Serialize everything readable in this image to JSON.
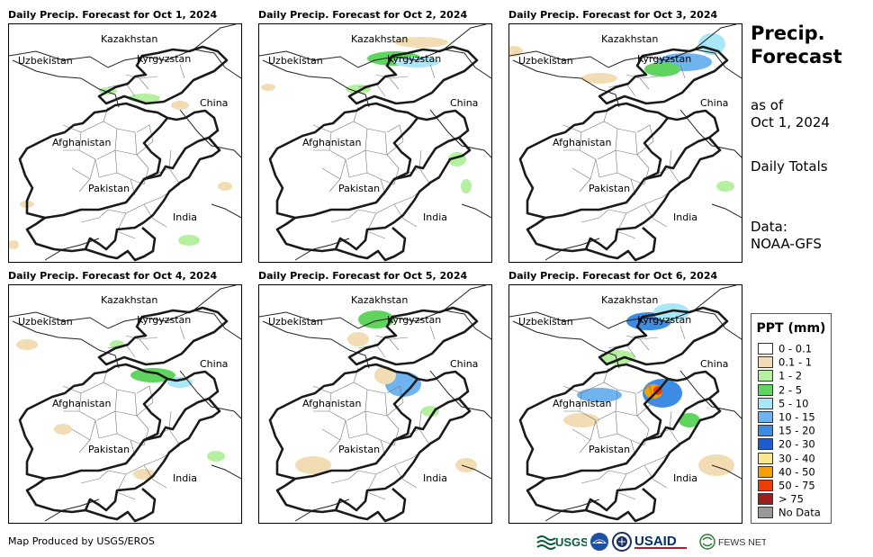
{
  "panels": [
    {
      "title": "Daily Precip. Forecast for Oct 1, 2024"
    },
    {
      "title": "Daily Precip. Forecast for Oct 2, 2024"
    },
    {
      "title": "Daily Precip. Forecast for Oct 3, 2024"
    },
    {
      "title": "Daily Precip. Forecast for Oct 4, 2024"
    },
    {
      "title": "Daily Precip. Forecast for Oct 5, 2024"
    },
    {
      "title": "Daily Precip. Forecast for Oct 6, 2024"
    }
  ],
  "map_labels": {
    "kazakhstan": "Kazakhstan",
    "uzbekistan": "Uzbekistan",
    "kyrgyzstan": "Kyrgyzstan",
    "china": "China",
    "afghanistan": "Afghanistan",
    "pakistan": "Pakistan",
    "india": "India"
  },
  "side": {
    "title_line1": "Precip.",
    "title_line2": "Forecast",
    "asof_line1": "as of",
    "asof_line2": "Oct 1, 2024",
    "totals": "Daily Totals",
    "data_line1": "Data:",
    "data_line2": "NOAA-GFS"
  },
  "legend": {
    "title": "PPT (mm)",
    "items": [
      {
        "label": "0 - 0.1",
        "color": "#ffffff"
      },
      {
        "label": "0.1 - 1",
        "color": "#f2dcb4"
      },
      {
        "label": "1 - 2",
        "color": "#b4f0a0"
      },
      {
        "label": "2 - 5",
        "color": "#5fd45f"
      },
      {
        "label": "5 - 10",
        "color": "#a8e6f8"
      },
      {
        "label": "10 - 15",
        "color": "#6fb4f0"
      },
      {
        "label": "15 - 20",
        "color": "#3c8ce6"
      },
      {
        "label": "20 - 30",
        "color": "#1e5ad2"
      },
      {
        "label": "30 - 40",
        "color": "#fae68c"
      },
      {
        "label": "40 - 50",
        "color": "#f5a000"
      },
      {
        "label": "50 - 75",
        "color": "#f03c00"
      },
      {
        "label": "> 75",
        "color": "#a01e1e"
      },
      {
        "label": "No Data",
        "color": "#999999"
      }
    ]
  },
  "footer": {
    "credit": "Map Produced by USGS/EROS",
    "logo_usgs": "USGS",
    "logo_usaid": "USAID",
    "logo_fewsnet": "FEWS NET"
  }
}
